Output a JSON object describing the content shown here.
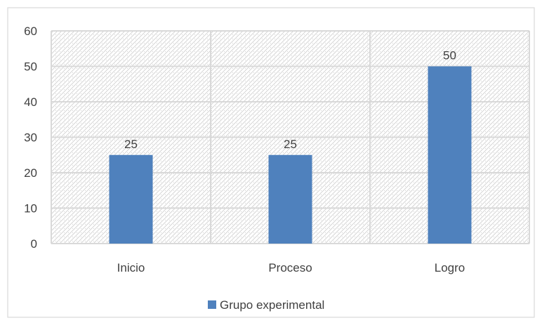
{
  "chart_data": {
    "type": "bar",
    "categories": [
      "Inicio",
      "Proceso",
      "Logro"
    ],
    "series": [
      {
        "name": "Grupo experimental",
        "values": [
          25,
          25,
          50
        ],
        "color": "#4f81bd"
      }
    ],
    "data_labels": [
      "25",
      "25",
      "50"
    ],
    "y_ticks": [
      "0",
      "10",
      "20",
      "30",
      "40",
      "50",
      "60"
    ],
    "ylim": [
      0,
      60
    ],
    "y_step": 10,
    "grid": true,
    "legend_position": "bottom",
    "title": "",
    "xlabel": "",
    "ylabel": ""
  },
  "colors": {
    "bar": "#4f81bd",
    "gridline": "#d9d9d9",
    "border": "#d9d9d9",
    "text": "#404040",
    "pattern": "#c8c8c8"
  }
}
